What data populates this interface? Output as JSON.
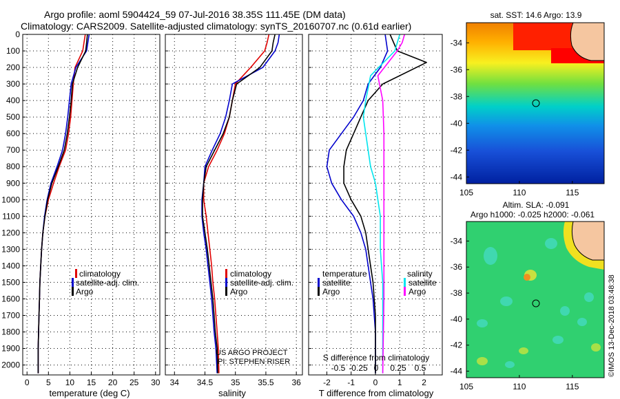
{
  "header": {
    "line1": "Argo profile: aoml 5904424_59 07-Jul-2016 38.35S 111.45E (DM data)",
    "line2": "Climatology: CARS2009. Satellite-adjusted climatology: synTS_20160707.nc (0.61d earlier)"
  },
  "colors": {
    "climatology": "#e00000",
    "satellite": "#0000cc",
    "argo": "#000000",
    "salinity": "#00e5ee",
    "salinity_argo": "#ff00ff"
  },
  "chart_data": [
    {
      "type": "line",
      "id": "temperature",
      "xlabel": "temperature (deg C)",
      "ylabel": "",
      "xlim": [
        -1,
        31
      ],
      "ylim": [
        2060,
        0
      ],
      "xticks": [
        0,
        5,
        10,
        15,
        20,
        25,
        30
      ],
      "xtick_labels": [
        "0",
        "5",
        "10",
        "15",
        "20",
        "25",
        "30"
      ],
      "yticks": [
        0,
        100,
        200,
        300,
        400,
        500,
        600,
        700,
        800,
        900,
        1000,
        1100,
        1200,
        1300,
        1400,
        1500,
        1600,
        1700,
        1800,
        1900,
        2000
      ],
      "ytick_labels": [
        "0",
        "100",
        "200",
        "300",
        "400",
        "500",
        "600",
        "700",
        "800",
        "900",
        "1000",
        "1100",
        "1200",
        "1300",
        "1400",
        "1500",
        "1600",
        "1700",
        "1800",
        "1900",
        "2000"
      ],
      "grid": true,
      "legend": [
        "climatology",
        "satellite-adj. clim.",
        "Argo"
      ],
      "series": [
        {
          "name": "climatology",
          "color": "#e00000",
          "x": [
            13.6,
            13.3,
            13.0,
            11.2,
            10.8,
            10.5,
            10.2,
            9.7,
            9.0,
            7.5,
            6.2,
            5.0,
            4.2,
            3.7,
            3.4,
            3.2,
            3.0,
            2.9,
            2.8,
            2.7,
            2.6,
            2.6
          ],
          "y": [
            0,
            50,
            100,
            200,
            300,
            400,
            500,
            600,
            700,
            800,
            900,
            1000,
            1100,
            1200,
            1300,
            1400,
            1500,
            1600,
            1700,
            1800,
            1900,
            2050
          ]
        },
        {
          "name": "satellite-adj. clim.",
          "color": "#0000cc",
          "x": [
            14.5,
            14.2,
            13.9,
            11.4,
            10.3,
            9.9,
            9.5,
            9.0,
            8.3,
            7.0,
            5.6,
            4.7,
            4.1,
            3.7,
            3.4,
            3.2,
            3.0,
            2.9,
            2.8,
            2.7,
            2.6,
            2.6
          ],
          "y": [
            0,
            50,
            100,
            200,
            300,
            400,
            500,
            600,
            700,
            800,
            900,
            1000,
            1100,
            1200,
            1300,
            1400,
            1500,
            1600,
            1700,
            1800,
            1900,
            2050
          ]
        },
        {
          "name": "Argo",
          "color": "#000000",
          "x": [
            14.1,
            13.9,
            13.7,
            11.8,
            10.6,
            10.3,
            9.9,
            9.4,
            8.7,
            7.3,
            5.8,
            4.8,
            4.2,
            3.7,
            3.4,
            3.2,
            3.0,
            2.9,
            2.8,
            2.7,
            2.6,
            2.6
          ],
          "y": [
            0,
            50,
            100,
            200,
            300,
            400,
            500,
            600,
            700,
            800,
            900,
            1000,
            1100,
            1200,
            1300,
            1400,
            1500,
            1600,
            1700,
            1800,
            1900,
            2050
          ]
        }
      ]
    },
    {
      "type": "line",
      "id": "salinity",
      "xlabel": "salinity",
      "ylabel": "",
      "xlim": [
        33.85,
        36.1
      ],
      "ylim": [
        2060,
        0
      ],
      "xticks": [
        34,
        34.5,
        35,
        35.5,
        36
      ],
      "xtick_labels": [
        "34",
        "34.5",
        "35",
        "35.5",
        "36"
      ],
      "grid": true,
      "legend": [
        "climatology",
        "satellite-adj. clim.",
        "Argo"
      ],
      "annotations": [
        "US ARGO PROJECT",
        "PI: STEPHEN RISER"
      ],
      "series": [
        {
          "name": "climatology",
          "color": "#e00000",
          "x": [
            35.55,
            35.52,
            35.48,
            35.25,
            35.0,
            34.95,
            34.9,
            34.82,
            34.7,
            34.56,
            34.48,
            34.48,
            34.52,
            34.55,
            34.58,
            34.61,
            34.63,
            34.66,
            34.68,
            34.7,
            34.72,
            34.73
          ],
          "y": [
            0,
            50,
            100,
            200,
            300,
            400,
            500,
            600,
            700,
            800,
            900,
            1000,
            1100,
            1200,
            1300,
            1400,
            1500,
            1600,
            1700,
            1800,
            1900,
            2050
          ]
        },
        {
          "name": "satellite-adj. clim.",
          "color": "#0000cc",
          "x": [
            35.72,
            35.7,
            35.65,
            35.45,
            34.95,
            34.9,
            34.84,
            34.75,
            34.62,
            34.5,
            34.48,
            34.45,
            34.45,
            34.48,
            34.52,
            34.55,
            34.58,
            34.61,
            34.63,
            34.65,
            34.68,
            34.7
          ],
          "y": [
            0,
            50,
            100,
            200,
            300,
            400,
            500,
            600,
            700,
            800,
            900,
            1000,
            1100,
            1200,
            1300,
            1400,
            1500,
            1600,
            1700,
            1800,
            1900,
            2050
          ]
        },
        {
          "name": "Argo",
          "color": "#000000",
          "x": [
            35.65,
            35.62,
            35.6,
            35.4,
            35.02,
            34.95,
            34.9,
            34.8,
            34.66,
            34.52,
            34.48,
            34.46,
            34.46,
            34.5,
            34.54,
            34.57,
            34.6,
            34.63,
            34.65,
            34.67,
            34.7,
            34.71
          ],
          "y": [
            0,
            50,
            100,
            200,
            300,
            400,
            500,
            600,
            700,
            800,
            900,
            1000,
            1100,
            1200,
            1300,
            1400,
            1500,
            1600,
            1700,
            1800,
            1900,
            2050
          ]
        }
      ]
    },
    {
      "type": "line",
      "id": "difference",
      "xlabel": "T difference from climatology",
      "ylabel": "",
      "xlim": [
        -2.75,
        2.75
      ],
      "ylim": [
        2060,
        0
      ],
      "xticks": [
        -2,
        -1,
        0,
        1,
        2
      ],
      "xtick_labels": [
        "-2",
        "-1",
        "0",
        "1",
        "2"
      ],
      "secondary_xlabel": "S difference from climatology",
      "secondary_xtick_labels": [
        "-0.5",
        "-0.25",
        "0",
        "0.25",
        "0.5"
      ],
      "grid": true,
      "legend": {
        "temperature": [
          "satellite",
          "Argo"
        ],
        "salinity": [
          "satellite",
          "Argo"
        ]
      },
      "series": [
        {
          "name": "satellite",
          "quantity": "temperature",
          "color": "#0000cc",
          "x": [
            0.4,
            0.5,
            0.2,
            -0.3,
            -0.5,
            -0.9,
            -1.4,
            -1.9,
            -2.0,
            -1.8,
            -1.4,
            -0.9,
            -0.6,
            -0.4,
            -0.3,
            -0.2,
            -0.1,
            -0.05,
            0,
            0,
            0
          ],
          "y": [
            0,
            100,
            200,
            300,
            400,
            500,
            600,
            700,
            800,
            900,
            1000,
            1100,
            1200,
            1300,
            1400,
            1500,
            1600,
            1700,
            1800,
            1900,
            2050
          ]
        },
        {
          "name": "Argo",
          "quantity": "temperature",
          "color": "#000000",
          "x": [
            0.6,
            0.9,
            2.1,
            0.3,
            -0.3,
            -0.6,
            -0.9,
            -1.2,
            -1.3,
            -1.3,
            -1.0,
            -0.6,
            -0.4,
            -0.3,
            -0.2,
            -0.1,
            -0.05,
            0,
            0,
            0,
            0
          ],
          "y": [
            0,
            100,
            170,
            300,
            400,
            500,
            600,
            700,
            800,
            900,
            1000,
            1100,
            1200,
            1300,
            1400,
            1500,
            1600,
            1700,
            1800,
            1900,
            2050
          ]
        },
        {
          "name": "satellite",
          "quantity": "salinity",
          "color": "#00e5ee",
          "x": [
            1.0,
            0.9,
            0.8,
            -0.2,
            -0.4,
            -0.5,
            -0.4,
            -0.3,
            -0.2,
            0,
            0.1,
            0.2,
            0.2,
            0.2,
            0.25,
            0.3,
            0.3,
            0.3,
            0.3
          ],
          "y": [
            0,
            50,
            100,
            250,
            400,
            500,
            600,
            700,
            800,
            900,
            1000,
            1100,
            1200,
            1300,
            1400,
            1500,
            1600,
            1800,
            2050
          ]
        },
        {
          "name": "Argo",
          "quantity": "salinity",
          "color": "#ff00ff",
          "x": [
            1.2,
            1.1,
            0.9,
            0.1,
            0.3,
            0.35,
            0.35,
            0.35,
            0.35,
            0.35,
            0.3
          ],
          "y": [
            0,
            50,
            100,
            250,
            400,
            600,
            800,
            1000,
            1200,
            1600,
            2050
          ]
        }
      ]
    },
    {
      "type": "heatmap",
      "id": "sst-map",
      "title": "sat. SST: 14.6 Argo: 13.9",
      "xlim": [
        105,
        118
      ],
      "ylim": [
        -44.5,
        -32.5
      ],
      "xticks": [
        105,
        110,
        115
      ],
      "yticks": [
        -34,
        -36,
        -38,
        -40,
        -42,
        -44
      ],
      "profile_marker": [
        111.45,
        -38.35
      ]
    },
    {
      "type": "heatmap",
      "id": "sla-map",
      "title": [
        "Altim. SLA: -0.091",
        "Argo h1000: -0.025 h2000: -0.061"
      ],
      "xlim": [
        105,
        118
      ],
      "ylim": [
        -44.5,
        -32.5
      ],
      "xticks": [
        105,
        110,
        115
      ],
      "yticks": [
        -34,
        -36,
        -38,
        -40,
        -42,
        -44
      ],
      "profile_marker": [
        111.45,
        -38.35
      ]
    }
  ],
  "footer_credit": "©IMOS 13-Dec-2018 03:48:38"
}
